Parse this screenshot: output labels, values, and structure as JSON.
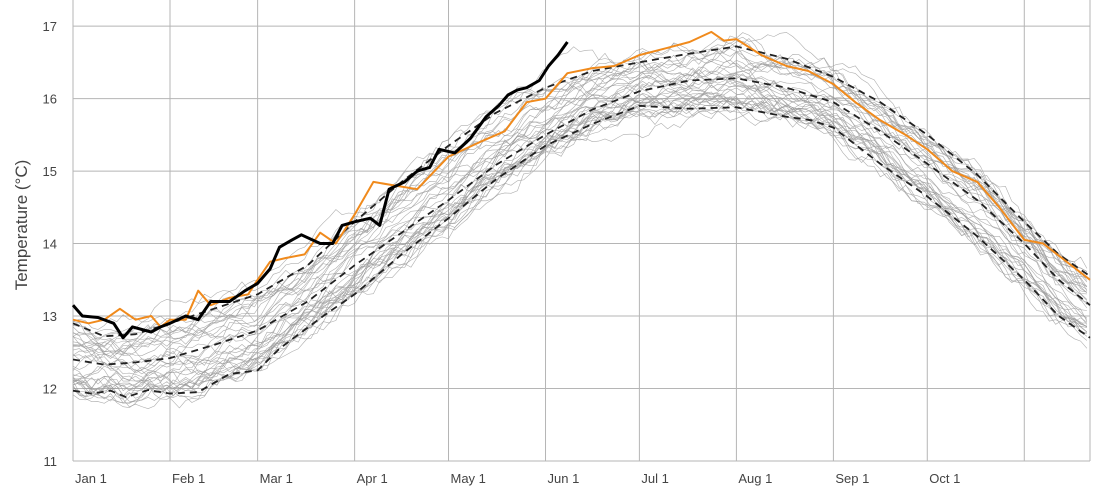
{
  "chart_data": {
    "type": "line",
    "title": "",
    "xlabel": "",
    "ylabel": "Temperature (°C)",
    "xlim_days": [
      0,
      325
    ],
    "ylim": [
      11,
      17.36
    ],
    "grid": true,
    "y_ticks": [
      11,
      12,
      13,
      14,
      15,
      16,
      17
    ],
    "x_ticks": [
      {
        "day": 0,
        "label": "Jan 1"
      },
      {
        "day": 31,
        "label": "Feb 1"
      },
      {
        "day": 59,
        "label": "Mar 1"
      },
      {
        "day": 90,
        "label": "Apr 1"
      },
      {
        "day": 120,
        "label": "May 1"
      },
      {
        "day": 151,
        "label": "Jun 1"
      },
      {
        "day": 181,
        "label": "Jul 1"
      },
      {
        "day": 212,
        "label": "Aug 1"
      },
      {
        "day": 243,
        "label": "Sep 1"
      },
      {
        "day": 273,
        "label": "Oct 1"
      },
      {
        "day": 304,
        "label": ""
      }
    ],
    "ensemble": {
      "name": "past years",
      "count": 40,
      "color": "#9a9a9a"
    },
    "series": [
      {
        "name": "upper percentile",
        "style": "dashed",
        "color": "#222222",
        "points": [
          [
            0,
            12.9
          ],
          [
            10,
            12.72
          ],
          [
            20,
            12.75
          ],
          [
            31,
            12.9
          ],
          [
            45,
            13.1
          ],
          [
            59,
            13.3
          ],
          [
            75,
            13.7
          ],
          [
            90,
            14.3
          ],
          [
            105,
            14.85
          ],
          [
            120,
            15.35
          ],
          [
            135,
            15.8
          ],
          [
            151,
            16.15
          ],
          [
            166,
            16.38
          ],
          [
            181,
            16.5
          ],
          [
            197,
            16.62
          ],
          [
            212,
            16.72
          ],
          [
            228,
            16.55
          ],
          [
            243,
            16.3
          ],
          [
            258,
            15.95
          ],
          [
            273,
            15.5
          ],
          [
            289,
            14.95
          ],
          [
            304,
            14.3
          ],
          [
            315,
            13.85
          ],
          [
            325,
            13.55
          ]
        ]
      },
      {
        "name": "mean",
        "style": "dashed",
        "color": "#222222",
        "points": [
          [
            0,
            12.4
          ],
          [
            10,
            12.33
          ],
          [
            20,
            12.36
          ],
          [
            31,
            12.42
          ],
          [
            45,
            12.6
          ],
          [
            59,
            12.8
          ],
          [
            75,
            13.2
          ],
          [
            90,
            13.7
          ],
          [
            105,
            14.15
          ],
          [
            120,
            14.6
          ],
          [
            135,
            15.08
          ],
          [
            151,
            15.5
          ],
          [
            166,
            15.85
          ],
          [
            181,
            16.1
          ],
          [
            197,
            16.25
          ],
          [
            212,
            16.28
          ],
          [
            228,
            16.15
          ],
          [
            243,
            15.95
          ],
          [
            258,
            15.55
          ],
          [
            273,
            15.1
          ],
          [
            289,
            14.6
          ],
          [
            304,
            14.0
          ],
          [
            315,
            13.5
          ],
          [
            325,
            13.15
          ]
        ]
      },
      {
        "name": "lower percentile",
        "style": "dashed",
        "color": "#222222",
        "points": [
          [
            0,
            11.97
          ],
          [
            6,
            11.93
          ],
          [
            12,
            11.97
          ],
          [
            17,
            11.88
          ],
          [
            24,
            11.98
          ],
          [
            31,
            11.93
          ],
          [
            40,
            11.95
          ],
          [
            50,
            12.2
          ],
          [
            59,
            12.25
          ],
          [
            66,
            12.55
          ],
          [
            80,
            13.0
          ],
          [
            90,
            13.3
          ],
          [
            105,
            13.85
          ],
          [
            120,
            14.35
          ],
          [
            135,
            14.88
          ],
          [
            151,
            15.35
          ],
          [
            166,
            15.65
          ],
          [
            181,
            15.9
          ],
          [
            197,
            15.86
          ],
          [
            212,
            15.88
          ],
          [
            228,
            15.75
          ],
          [
            236,
            15.7
          ],
          [
            243,
            15.6
          ],
          [
            258,
            15.1
          ],
          [
            273,
            14.65
          ],
          [
            289,
            14.1
          ],
          [
            304,
            13.5
          ],
          [
            315,
            13.0
          ],
          [
            325,
            12.7
          ]
        ]
      },
      {
        "name": "orange year",
        "style": "solid",
        "color": "#f08a1c",
        "points": [
          [
            0,
            12.95
          ],
          [
            5,
            12.9
          ],
          [
            10,
            12.95
          ],
          [
            15,
            13.1
          ],
          [
            20,
            12.95
          ],
          [
            25,
            13.0
          ],
          [
            28,
            12.85
          ],
          [
            31,
            12.95
          ],
          [
            36,
            12.95
          ],
          [
            40,
            13.35
          ],
          [
            44,
            13.15
          ],
          [
            50,
            13.25
          ],
          [
            56,
            13.3
          ],
          [
            59,
            13.5
          ],
          [
            63,
            13.75
          ],
          [
            68,
            13.8
          ],
          [
            74,
            13.85
          ],
          [
            79,
            14.15
          ],
          [
            84,
            14.0
          ],
          [
            90,
            14.4
          ],
          [
            96,
            14.85
          ],
          [
            103,
            14.8
          ],
          [
            110,
            14.75
          ],
          [
            120,
            15.2
          ],
          [
            130,
            15.4
          ],
          [
            138,
            15.55
          ],
          [
            145,
            15.95
          ],
          [
            151,
            16.0
          ],
          [
            158,
            16.35
          ],
          [
            166,
            16.42
          ],
          [
            173,
            16.45
          ],
          [
            181,
            16.6
          ],
          [
            190,
            16.7
          ],
          [
            197,
            16.78
          ],
          [
            204,
            16.92
          ],
          [
            208,
            16.8
          ],
          [
            212,
            16.82
          ],
          [
            220,
            16.6
          ],
          [
            228,
            16.45
          ],
          [
            235,
            16.38
          ],
          [
            243,
            16.2
          ],
          [
            250,
            15.95
          ],
          [
            258,
            15.7
          ],
          [
            266,
            15.5
          ],
          [
            273,
            15.3
          ],
          [
            281,
            15.0
          ],
          [
            289,
            14.85
          ],
          [
            296,
            14.5
          ],
          [
            304,
            14.05
          ],
          [
            310,
            14.0
          ],
          [
            316,
            13.8
          ],
          [
            325,
            13.5
          ]
        ]
      },
      {
        "name": "current year",
        "style": "solid-bold",
        "color": "#000000",
        "points": [
          [
            0,
            13.15
          ],
          [
            3,
            13.0
          ],
          [
            8,
            12.98
          ],
          [
            13,
            12.9
          ],
          [
            16,
            12.7
          ],
          [
            19,
            12.85
          ],
          [
            25,
            12.78
          ],
          [
            28,
            12.85
          ],
          [
            31,
            12.9
          ],
          [
            36,
            13.0
          ],
          [
            40,
            12.95
          ],
          [
            44,
            13.2
          ],
          [
            50,
            13.2
          ],
          [
            55,
            13.35
          ],
          [
            59,
            13.45
          ],
          [
            63,
            13.65
          ],
          [
            66,
            13.95
          ],
          [
            70,
            14.05
          ],
          [
            73,
            14.12
          ],
          [
            79,
            14.0
          ],
          [
            83,
            14.0
          ],
          [
            86,
            14.25
          ],
          [
            90,
            14.3
          ],
          [
            95,
            14.35
          ],
          [
            98,
            14.25
          ],
          [
            101,
            14.75
          ],
          [
            106,
            14.85
          ],
          [
            110,
            15.0
          ],
          [
            114,
            15.05
          ],
          [
            117,
            15.3
          ],
          [
            122,
            15.25
          ],
          [
            127,
            15.45
          ],
          [
            132,
            15.75
          ],
          [
            136,
            15.9
          ],
          [
            139,
            16.05
          ],
          [
            142,
            16.12
          ],
          [
            145,
            16.15
          ],
          [
            149,
            16.25
          ],
          [
            152,
            16.45
          ],
          [
            155,
            16.6
          ],
          [
            158,
            16.78
          ]
        ]
      }
    ]
  }
}
